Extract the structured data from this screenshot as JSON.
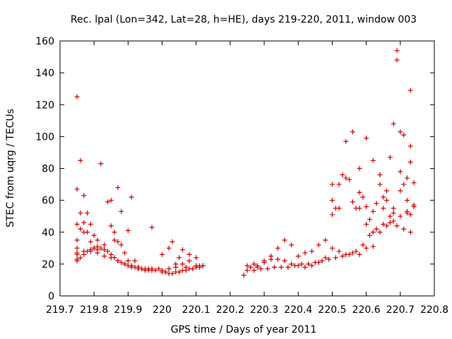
{
  "chart_data": {
    "type": "scatter",
    "title": "Rec. lpal (Lon=342, Lat=28, h=HE), days 219-220, 2011, window 003",
    "xlabel": "GPS time / Days of year 2011",
    "ylabel": "STEC from uqrg / TECUs",
    "xlim": [
      219.7,
      220.8
    ],
    "ylim": [
      0,
      160
    ],
    "xticks": [
      219.7,
      219.8,
      219.9,
      220,
      220.1,
      220.2,
      220.3,
      220.4,
      220.5,
      220.6,
      220.7,
      220.8
    ],
    "xtick_labels": [
      "219.7",
      "219.8",
      "219.9",
      "220",
      "220.1",
      "220.2",
      "220.3",
      "220.4",
      "220.5",
      "220.6",
      "220.7",
      "220.8"
    ],
    "yticks": [
      0,
      20,
      40,
      60,
      80,
      100,
      120,
      140,
      160
    ],
    "ytick_labels": [
      "0",
      "20",
      "40",
      "60",
      "80",
      "100",
      "120",
      "140",
      "160"
    ],
    "grid": false,
    "marker": "+",
    "color": "#cc0000",
    "series": [
      {
        "x": [
          219.75,
          219.75,
          219.75,
          219.75,
          219.75,
          219.75,
          219.75,
          219.76,
          219.76,
          219.76,
          219.77,
          219.77,
          219.77,
          219.78,
          219.78,
          219.79,
          219.79,
          219.79,
          219.8,
          219.8,
          219.81,
          219.81,
          219.82,
          219.83,
          219.83,
          219.84,
          219.85,
          219.85,
          219.86,
          219.86,
          219.87,
          219.87,
          219.88,
          219.88,
          219.89,
          219.9,
          219.9,
          219.91,
          219.92,
          219.93,
          219.94,
          219.96,
          219.97,
          220.0,
          220.01,
          220.02,
          220.03,
          220.04,
          220.05,
          220.06,
          220.07,
          220.08,
          220.1,
          220.11,
          220.12,
          220.24,
          220.25,
          220.27,
          220.28,
          220.3,
          220.32,
          220.34,
          220.36,
          220.38,
          220.4,
          220.42,
          220.44,
          220.46,
          220.48,
          220.5,
          220.52,
          220.54,
          220.56,
          220.58,
          220.6,
          220.62,
          220.64,
          220.66,
          220.68,
          220.7,
          220.72,
          220.73,
          220.73,
          220.5,
          220.5,
          220.51,
          220.52,
          220.53,
          220.54,
          220.55,
          220.56,
          220.57,
          220.58,
          220.58,
          220.59,
          220.6,
          220.6,
          220.61,
          220.62,
          220.62,
          220.63,
          220.64,
          220.65,
          220.65,
          220.66,
          220.67,
          220.67,
          220.68,
          220.68,
          220.69,
          220.69,
          220.7,
          220.7,
          220.71,
          220.71,
          220.72,
          220.72,
          220.73,
          220.73,
          220.74,
          220.74
        ],
        "y": [
          125,
          67,
          45,
          35,
          30,
          26,
          23,
          85,
          52,
          42,
          63,
          46,
          40,
          52,
          40,
          45,
          34,
          28,
          38,
          30,
          35,
          29,
          83,
          32,
          29,
          59,
          60,
          44,
          40,
          35,
          68,
          34,
          53,
          32,
          27,
          41,
          22,
          62,
          22,
          18,
          17,
          17,
          43,
          26,
          15,
          30,
          34,
          20,
          24,
          29,
          18,
          26,
          19,
          19,
          19,
          13,
          19,
          20,
          18,
          22,
          25,
          30,
          35,
          32,
          25,
          27,
          28,
          32,
          35,
          51,
          55,
          74,
          103,
          80,
          99,
          85,
          76,
          66,
          108,
          103,
          74,
          94,
          129,
          70,
          60,
          55,
          70,
          76,
          97,
          73,
          59,
          55,
          55,
          65,
          62,
          45,
          56,
          48,
          53,
          40,
          58,
          70,
          62,
          55,
          60,
          87,
          50,
          55,
          52,
          154,
          148,
          78,
          66,
          101,
          70,
          53,
          60,
          84,
          51,
          71,
          57
        ],
        "name": ""
      },
      {
        "x": [
          219.75,
          219.76,
          219.77,
          219.78,
          219.79,
          219.8,
          219.81,
          219.82,
          219.83,
          219.84,
          219.85,
          219.86,
          219.87,
          219.88,
          219.89,
          219.9,
          219.91,
          219.92,
          219.93,
          219.94,
          219.95,
          219.96,
          219.97,
          219.98,
          220.0,
          220.01,
          220.02,
          220.03,
          220.04,
          220.05,
          220.06,
          220.07,
          220.08,
          220.09,
          220.1,
          220.11,
          220.12,
          220.25,
          220.27,
          220.29,
          220.31,
          220.33,
          220.35,
          220.37,
          220.39,
          220.41,
          220.43,
          220.45,
          220.47,
          220.49,
          220.51,
          220.53,
          220.55,
          220.57,
          220.59,
          220.61,
          220.63,
          220.65,
          220.67,
          220.69,
          220.71,
          220.73
        ],
        "y": [
          22,
          24,
          26,
          28,
          29,
          30,
          31,
          30,
          29,
          28,
          26,
          24,
          22,
          21,
          20,
          19,
          18,
          18,
          17,
          17,
          16,
          16,
          16,
          16,
          15,
          15,
          14,
          14,
          15,
          15,
          16,
          16,
          17,
          17,
          18,
          18,
          19,
          16,
          16,
          17,
          17,
          18,
          18,
          18,
          19,
          20,
          20,
          21,
          22,
          23,
          24,
          25,
          26,
          28,
          32,
          38,
          42,
          45,
          46,
          44,
          42,
          40
        ],
        "name": ""
      },
      {
        "x": [
          219.75,
          219.77,
          219.79,
          219.81,
          219.83,
          219.85,
          219.87,
          219.89,
          219.91,
          219.93,
          219.95,
          219.97,
          219.99,
          220.0,
          220.02,
          220.04,
          220.06,
          220.08,
          220.1,
          220.26,
          220.28,
          220.3,
          220.32,
          220.34,
          220.36,
          220.38,
          220.4,
          220.42,
          220.44,
          220.46,
          220.48,
          220.5,
          220.52,
          220.54,
          220.56,
          220.58,
          220.6,
          220.62,
          220.64,
          220.66,
          220.68,
          220.7,
          220.72,
          220.74
        ],
        "y": [
          27,
          28,
          29,
          27,
          25,
          24,
          22,
          20,
          19,
          18,
          17,
          17,
          17,
          16,
          17,
          18,
          20,
          22,
          24,
          18,
          19,
          21,
          23,
          23,
          22,
          20,
          19,
          18,
          19,
          21,
          24,
          30,
          28,
          26,
          27,
          26,
          30,
          31,
          40,
          44,
          47,
          50,
          52,
          56
        ],
        "name": ""
      }
    ]
  }
}
